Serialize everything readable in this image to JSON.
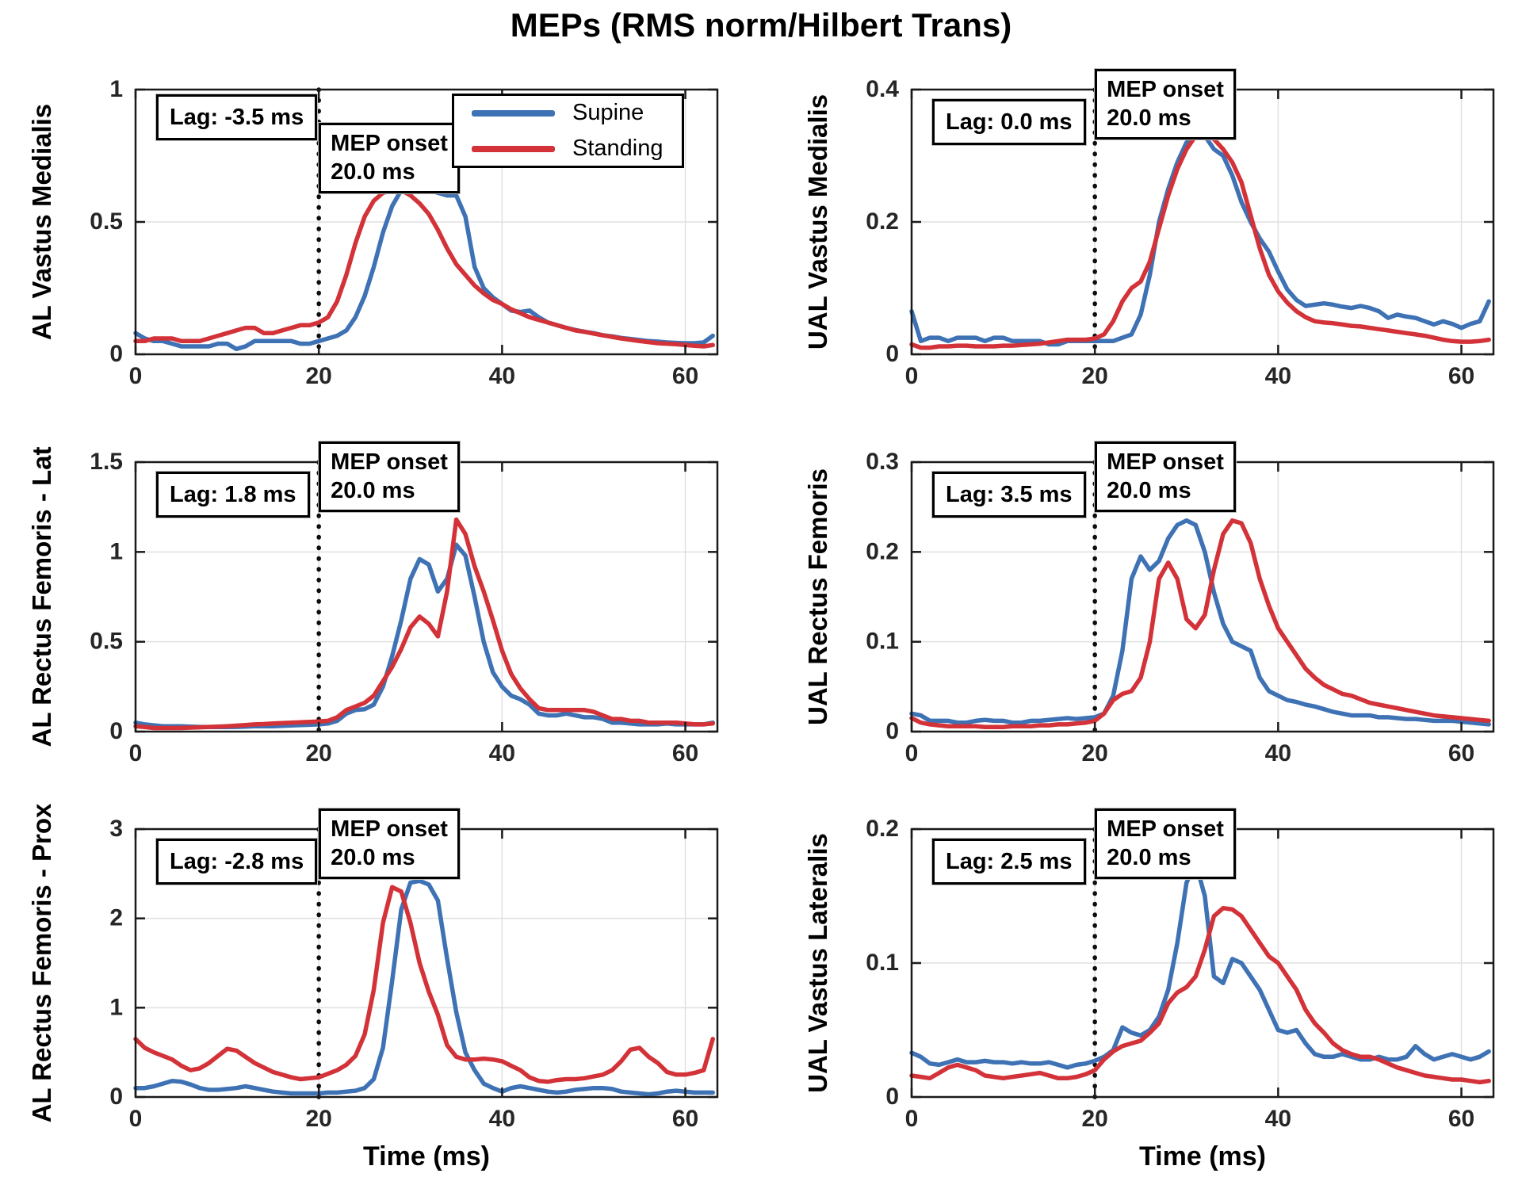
{
  "title": "MEPs (RMS norm/Hilbert Trans)",
  "legend": {
    "position": "top-left-subplot",
    "items": [
      {
        "label": "Supine",
        "color": "#3E72B4"
      },
      {
        "label": "Standing",
        "color": "#D23238"
      }
    ]
  },
  "x_ms": [
    0,
    1,
    2,
    3,
    4,
    5,
    6,
    7,
    8,
    9,
    10,
    11,
    12,
    13,
    14,
    15,
    16,
    17,
    18,
    19,
    20,
    21,
    22,
    23,
    24,
    25,
    26,
    27,
    28,
    29,
    30,
    31,
    32,
    33,
    34,
    35,
    36,
    37,
    38,
    39,
    40,
    41,
    42,
    43,
    44,
    45,
    46,
    47,
    48,
    49,
    50,
    51,
    52,
    53,
    54,
    55,
    56,
    57,
    58,
    59,
    60,
    61,
    62,
    63
  ],
  "chart_data": [
    {
      "type": "line",
      "ylabel": "AL Vastus Medialis",
      "xlim": [
        0,
        63.5
      ],
      "ylim": [
        0,
        1
      ],
      "xticks": [
        0,
        20,
        40,
        60
      ],
      "yticks": [
        0,
        0.5,
        1
      ],
      "ytick_labels": [
        "0",
        "0.5",
        "1"
      ],
      "grid": true,
      "mep_onset_ms": 20.0,
      "lag_ms": -3.5,
      "annotations": {
        "lag": "Lag: -3.5 ms",
        "mep_line1": "MEP onset",
        "mep_line2": "20.0 ms"
      },
      "series": [
        {
          "name": "Supine",
          "color": "#3E72B4",
          "values": [
            0.08,
            0.06,
            0.05,
            0.05,
            0.04,
            0.03,
            0.03,
            0.03,
            0.03,
            0.04,
            0.04,
            0.02,
            0.03,
            0.05,
            0.05,
            0.05,
            0.05,
            0.05,
            0.04,
            0.04,
            0.05,
            0.06,
            0.07,
            0.09,
            0.14,
            0.22,
            0.33,
            0.46,
            0.56,
            0.62,
            0.63,
            0.63,
            0.62,
            0.61,
            0.6,
            0.6,
            0.52,
            0.33,
            0.25,
            0.215,
            0.19,
            0.165,
            0.16,
            0.165,
            0.14,
            0.12,
            0.11,
            0.1,
            0.092,
            0.085,
            0.08,
            0.072,
            0.068,
            0.062,
            0.058,
            0.054,
            0.05,
            0.048,
            0.045,
            0.043,
            0.042,
            0.042,
            0.045,
            0.07
          ]
        },
        {
          "name": "Standing",
          "color": "#D23238",
          "values": [
            0.05,
            0.05,
            0.06,
            0.06,
            0.06,
            0.05,
            0.05,
            0.05,
            0.06,
            0.07,
            0.08,
            0.09,
            0.1,
            0.1,
            0.08,
            0.08,
            0.09,
            0.1,
            0.11,
            0.11,
            0.12,
            0.14,
            0.2,
            0.3,
            0.42,
            0.52,
            0.58,
            0.61,
            0.62,
            0.62,
            0.6,
            0.57,
            0.53,
            0.47,
            0.4,
            0.34,
            0.3,
            0.26,
            0.23,
            0.205,
            0.19,
            0.17,
            0.155,
            0.14,
            0.13,
            0.12,
            0.11,
            0.1,
            0.09,
            0.085,
            0.078,
            0.072,
            0.066,
            0.06,
            0.055,
            0.05,
            0.046,
            0.042,
            0.04,
            0.038,
            0.035,
            0.032,
            0.03,
            0.035
          ]
        }
      ]
    },
    {
      "type": "line",
      "ylabel": "UAL Vastus Medialis",
      "xlim": [
        0,
        63.5
      ],
      "ylim": [
        0,
        0.4
      ],
      "xticks": [
        0,
        20,
        40,
        60
      ],
      "yticks": [
        0,
        0.2,
        0.4
      ],
      "ytick_labels": [
        "0",
        "0.2",
        "0.4"
      ],
      "grid": true,
      "mep_onset_ms": 20.0,
      "lag_ms": 0.0,
      "annotations": {
        "lag": "Lag: 0.0 ms",
        "mep_line1": "MEP onset",
        "mep_line2": "20.0 ms"
      },
      "series": [
        {
          "name": "Supine",
          "color": "#3E72B4",
          "values": [
            0.065,
            0.02,
            0.025,
            0.025,
            0.02,
            0.025,
            0.025,
            0.025,
            0.02,
            0.025,
            0.025,
            0.02,
            0.02,
            0.02,
            0.02,
            0.015,
            0.015,
            0.02,
            0.02,
            0.02,
            0.02,
            0.02,
            0.02,
            0.025,
            0.03,
            0.06,
            0.12,
            0.2,
            0.25,
            0.29,
            0.32,
            0.335,
            0.33,
            0.31,
            0.3,
            0.27,
            0.23,
            0.2,
            0.175,
            0.155,
            0.125,
            0.098,
            0.082,
            0.073,
            0.075,
            0.077,
            0.075,
            0.072,
            0.07,
            0.073,
            0.07,
            0.065,
            0.055,
            0.06,
            0.057,
            0.055,
            0.05,
            0.045,
            0.05,
            0.046,
            0.04,
            0.046,
            0.05,
            0.08
          ]
        },
        {
          "name": "Standing",
          "color": "#D23238",
          "values": [
            0.015,
            0.01,
            0.01,
            0.012,
            0.012,
            0.013,
            0.013,
            0.012,
            0.012,
            0.012,
            0.013,
            0.013,
            0.014,
            0.015,
            0.016,
            0.018,
            0.02,
            0.022,
            0.022,
            0.022,
            0.024,
            0.03,
            0.05,
            0.08,
            0.1,
            0.11,
            0.14,
            0.19,
            0.24,
            0.28,
            0.31,
            0.33,
            0.335,
            0.325,
            0.31,
            0.29,
            0.26,
            0.21,
            0.16,
            0.12,
            0.095,
            0.078,
            0.065,
            0.056,
            0.05,
            0.048,
            0.047,
            0.045,
            0.043,
            0.042,
            0.04,
            0.038,
            0.036,
            0.034,
            0.032,
            0.03,
            0.028,
            0.025,
            0.022,
            0.02,
            0.019,
            0.019,
            0.02,
            0.022
          ]
        }
      ]
    },
    {
      "type": "line",
      "ylabel": "AL Rectus Femoris - Lat",
      "xlim": [
        0,
        63.5
      ],
      "ylim": [
        0,
        1.5
      ],
      "xticks": [
        0,
        20,
        40,
        60
      ],
      "yticks": [
        0,
        0.5,
        1,
        1.5
      ],
      "ytick_labels": [
        "0",
        "0.5",
        "1",
        "1.5"
      ],
      "grid": true,
      "mep_onset_ms": 20.0,
      "lag_ms": 1.8,
      "annotations": {
        "lag": "Lag: 1.8 ms",
        "mep_line1": "MEP onset",
        "mep_line2": "20.0 ms"
      },
      "series": [
        {
          "name": "Supine",
          "color": "#3E72B4",
          "values": [
            0.05,
            0.04,
            0.035,
            0.03,
            0.03,
            0.03,
            0.028,
            0.026,
            0.025,
            0.025,
            0.025,
            0.026,
            0.028,
            0.03,
            0.03,
            0.03,
            0.032,
            0.034,
            0.036,
            0.038,
            0.04,
            0.045,
            0.06,
            0.1,
            0.12,
            0.125,
            0.15,
            0.25,
            0.42,
            0.62,
            0.85,
            0.96,
            0.93,
            0.78,
            0.85,
            1.04,
            0.98,
            0.75,
            0.5,
            0.33,
            0.25,
            0.2,
            0.18,
            0.15,
            0.1,
            0.09,
            0.09,
            0.1,
            0.09,
            0.08,
            0.08,
            0.07,
            0.05,
            0.05,
            0.045,
            0.04,
            0.04,
            0.04,
            0.045,
            0.04,
            0.04,
            0.04,
            0.04,
            0.05
          ]
        },
        {
          "name": "Standing",
          "color": "#D23238",
          "values": [
            0.03,
            0.025,
            0.02,
            0.02,
            0.02,
            0.02,
            0.022,
            0.024,
            0.026,
            0.028,
            0.03,
            0.033,
            0.036,
            0.04,
            0.042,
            0.045,
            0.047,
            0.05,
            0.052,
            0.054,
            0.056,
            0.06,
            0.08,
            0.12,
            0.14,
            0.16,
            0.2,
            0.28,
            0.36,
            0.46,
            0.58,
            0.64,
            0.6,
            0.53,
            0.78,
            1.18,
            1.1,
            0.92,
            0.78,
            0.62,
            0.45,
            0.32,
            0.24,
            0.18,
            0.13,
            0.12,
            0.12,
            0.12,
            0.12,
            0.12,
            0.11,
            0.09,
            0.07,
            0.07,
            0.06,
            0.06,
            0.05,
            0.05,
            0.05,
            0.05,
            0.045,
            0.04,
            0.04,
            0.045
          ]
        }
      ]
    },
    {
      "type": "line",
      "ylabel": "UAL Rectus Femoris",
      "xlim": [
        0,
        63.5
      ],
      "ylim": [
        0,
        0.3
      ],
      "xticks": [
        0,
        20,
        40,
        60
      ],
      "yticks": [
        0,
        0.1,
        0.2,
        0.3
      ],
      "ytick_labels": [
        "0",
        "0.1",
        "0.2",
        "0.3"
      ],
      "grid": true,
      "mep_onset_ms": 20.0,
      "lag_ms": 3.5,
      "annotations": {
        "lag": "Lag: 3.5 ms",
        "mep_line1": "MEP onset",
        "mep_line2": "20.0 ms"
      },
      "series": [
        {
          "name": "Supine",
          "color": "#3E72B4",
          "values": [
            0.02,
            0.018,
            0.012,
            0.012,
            0.012,
            0.01,
            0.01,
            0.012,
            0.013,
            0.012,
            0.012,
            0.01,
            0.01,
            0.012,
            0.012,
            0.013,
            0.014,
            0.015,
            0.014,
            0.015,
            0.016,
            0.02,
            0.04,
            0.09,
            0.17,
            0.195,
            0.18,
            0.19,
            0.215,
            0.23,
            0.235,
            0.23,
            0.2,
            0.155,
            0.12,
            0.1,
            0.095,
            0.09,
            0.06,
            0.045,
            0.04,
            0.035,
            0.033,
            0.03,
            0.028,
            0.025,
            0.022,
            0.02,
            0.018,
            0.018,
            0.018,
            0.016,
            0.016,
            0.015,
            0.014,
            0.014,
            0.013,
            0.012,
            0.012,
            0.012,
            0.011,
            0.01,
            0.009,
            0.008
          ]
        },
        {
          "name": "Standing",
          "color": "#D23238",
          "values": [
            0.015,
            0.01,
            0.008,
            0.007,
            0.006,
            0.006,
            0.006,
            0.006,
            0.005,
            0.005,
            0.005,
            0.006,
            0.006,
            0.006,
            0.007,
            0.007,
            0.008,
            0.008,
            0.009,
            0.01,
            0.012,
            0.02,
            0.035,
            0.042,
            0.045,
            0.06,
            0.1,
            0.17,
            0.188,
            0.17,
            0.125,
            0.115,
            0.13,
            0.18,
            0.22,
            0.235,
            0.232,
            0.21,
            0.17,
            0.14,
            0.115,
            0.1,
            0.085,
            0.07,
            0.06,
            0.052,
            0.047,
            0.042,
            0.04,
            0.036,
            0.032,
            0.03,
            0.028,
            0.026,
            0.024,
            0.022,
            0.02,
            0.018,
            0.017,
            0.016,
            0.015,
            0.014,
            0.013,
            0.012
          ]
        }
      ]
    },
    {
      "type": "line",
      "ylabel": "AL Rectus Femoris - Prox",
      "xlabel": "Time (ms)",
      "xlim": [
        0,
        63.5
      ],
      "ylim": [
        0,
        3
      ],
      "xticks": [
        0,
        20,
        40,
        60
      ],
      "yticks": [
        0,
        1,
        2,
        3
      ],
      "ytick_labels": [
        "0",
        "1",
        "2",
        "3"
      ],
      "grid": true,
      "mep_onset_ms": 20.0,
      "lag_ms": -2.8,
      "annotations": {
        "lag": "Lag: -2.8 ms",
        "mep_line1": "MEP onset",
        "mep_line2": "20.0 ms"
      },
      "series": [
        {
          "name": "Supine",
          "color": "#3E72B4",
          "values": [
            0.1,
            0.1,
            0.12,
            0.15,
            0.18,
            0.17,
            0.14,
            0.1,
            0.08,
            0.08,
            0.09,
            0.1,
            0.12,
            0.1,
            0.08,
            0.06,
            0.05,
            0.04,
            0.04,
            0.04,
            0.04,
            0.05,
            0.05,
            0.06,
            0.07,
            0.1,
            0.2,
            0.55,
            1.3,
            2.1,
            2.4,
            2.42,
            2.38,
            2.2,
            1.55,
            0.95,
            0.5,
            0.3,
            0.15,
            0.1,
            0.06,
            0.1,
            0.12,
            0.1,
            0.08,
            0.06,
            0.05,
            0.06,
            0.08,
            0.09,
            0.1,
            0.1,
            0.09,
            0.06,
            0.05,
            0.04,
            0.03,
            0.04,
            0.06,
            0.07,
            0.06,
            0.05,
            0.05,
            0.05
          ]
        },
        {
          "name": "Standing",
          "color": "#D23238",
          "values": [
            0.65,
            0.55,
            0.5,
            0.46,
            0.42,
            0.35,
            0.3,
            0.32,
            0.38,
            0.46,
            0.54,
            0.52,
            0.45,
            0.38,
            0.33,
            0.28,
            0.25,
            0.22,
            0.2,
            0.21,
            0.22,
            0.26,
            0.3,
            0.36,
            0.46,
            0.7,
            1.2,
            1.95,
            2.35,
            2.3,
            1.95,
            1.5,
            1.18,
            0.92,
            0.58,
            0.45,
            0.42,
            0.42,
            0.43,
            0.42,
            0.4,
            0.35,
            0.3,
            0.22,
            0.18,
            0.17,
            0.19,
            0.2,
            0.2,
            0.21,
            0.23,
            0.25,
            0.3,
            0.4,
            0.53,
            0.55,
            0.45,
            0.38,
            0.28,
            0.25,
            0.25,
            0.27,
            0.3,
            0.65
          ]
        }
      ]
    },
    {
      "type": "line",
      "ylabel": "UAL Vastus Lateralis",
      "xlabel": "Time (ms)",
      "xlim": [
        0,
        63.5
      ],
      "ylim": [
        0,
        0.2
      ],
      "xticks": [
        0,
        20,
        40,
        60
      ],
      "yticks": [
        0,
        0.1,
        0.2
      ],
      "ytick_labels": [
        "0",
        "0.1",
        "0.2"
      ],
      "grid": true,
      "mep_onset_ms": 20.0,
      "lag_ms": 2.5,
      "annotations": {
        "lag": "Lag: 2.5 ms",
        "mep_line1": "MEP onset",
        "mep_line2": "20.0 ms"
      },
      "series": [
        {
          "name": "Supine",
          "color": "#3E72B4",
          "values": [
            0.033,
            0.03,
            0.025,
            0.024,
            0.026,
            0.028,
            0.026,
            0.026,
            0.027,
            0.026,
            0.026,
            0.025,
            0.026,
            0.025,
            0.025,
            0.026,
            0.024,
            0.022,
            0.024,
            0.025,
            0.027,
            0.03,
            0.035,
            0.052,
            0.048,
            0.046,
            0.05,
            0.06,
            0.08,
            0.115,
            0.16,
            0.175,
            0.15,
            0.09,
            0.085,
            0.103,
            0.1,
            0.09,
            0.08,
            0.065,
            0.05,
            0.048,
            0.05,
            0.04,
            0.032,
            0.03,
            0.03,
            0.032,
            0.03,
            0.028,
            0.028,
            0.03,
            0.028,
            0.028,
            0.03,
            0.038,
            0.032,
            0.028,
            0.03,
            0.032,
            0.03,
            0.028,
            0.03,
            0.034
          ]
        },
        {
          "name": "Standing",
          "color": "#D23238",
          "values": [
            0.016,
            0.015,
            0.014,
            0.018,
            0.022,
            0.024,
            0.022,
            0.02,
            0.016,
            0.015,
            0.014,
            0.015,
            0.016,
            0.017,
            0.018,
            0.016,
            0.014,
            0.014,
            0.015,
            0.017,
            0.02,
            0.028,
            0.034,
            0.038,
            0.04,
            0.042,
            0.048,
            0.055,
            0.07,
            0.078,
            0.082,
            0.09,
            0.11,
            0.135,
            0.141,
            0.14,
            0.135,
            0.125,
            0.115,
            0.105,
            0.1,
            0.09,
            0.08,
            0.065,
            0.055,
            0.048,
            0.04,
            0.035,
            0.032,
            0.03,
            0.03,
            0.028,
            0.025,
            0.022,
            0.02,
            0.018,
            0.016,
            0.015,
            0.014,
            0.013,
            0.013,
            0.012,
            0.011,
            0.012
          ]
        }
      ]
    }
  ]
}
